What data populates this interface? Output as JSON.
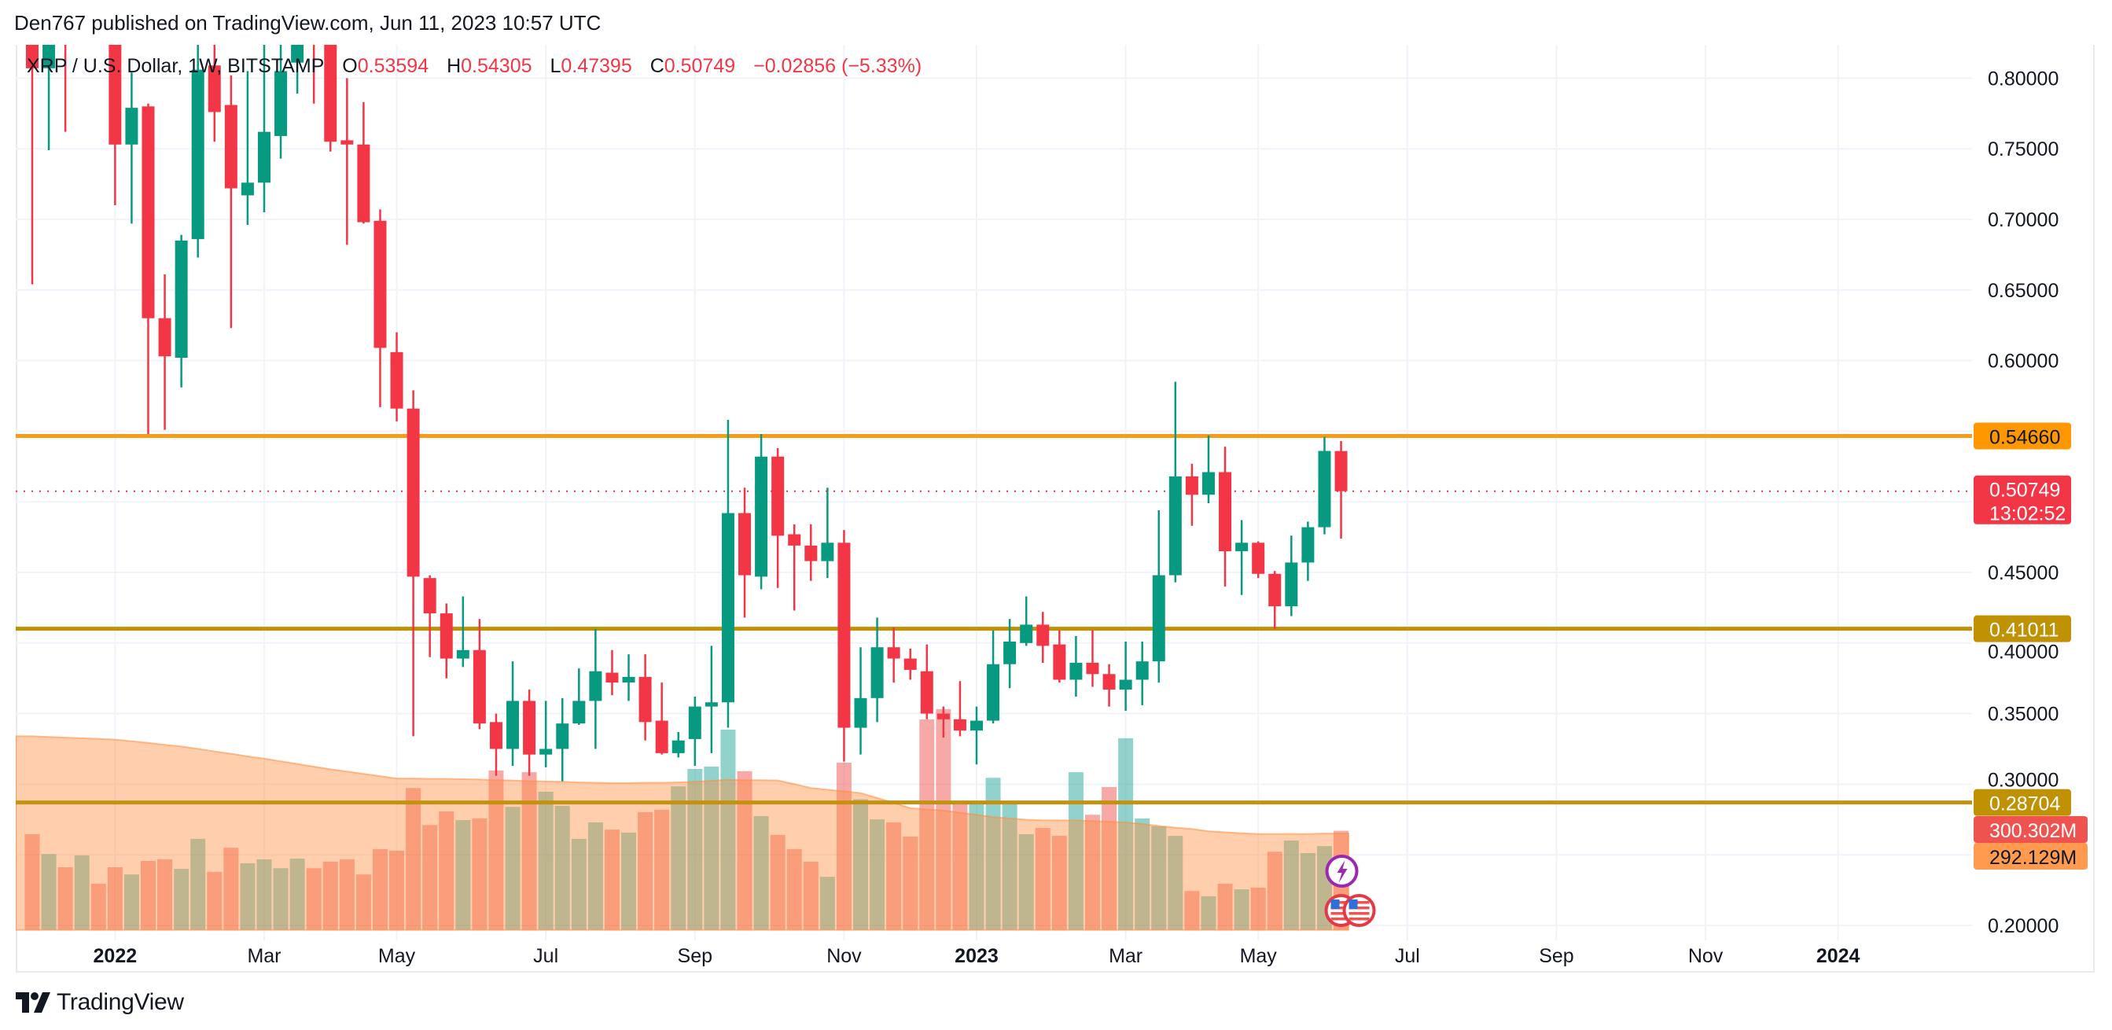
{
  "header": {
    "published": "Den767 published on TradingView.com, Jun 11, 2023 10:57 UTC",
    "symbol": "XRP / U.S. Dollar, 1W, BITSTAMP",
    "open_label": "O",
    "open": "0.53594",
    "high_label": "H",
    "high": "0.54305",
    "low_label": "L",
    "low": "0.47395",
    "close_label": "C",
    "close": "0.50749",
    "change": "−0.02856 (−5.33%)"
  },
  "brand": {
    "name": "TradingView"
  },
  "colors": {
    "up": "#089981",
    "down": "#f23645",
    "volume_up": "rgba(38,166,154,0.5)",
    "volume_down": "rgba(239,83,80,0.5)",
    "volume_ma_fill": "rgba(255,140,60,0.42)",
    "grid": "#f0f3fa"
  },
  "chart_data": {
    "type": "candlestick",
    "interval": "1W",
    "ylim": [
      0.189,
      0.824
    ],
    "price_ticks": [
      "0.80000",
      "0.75000",
      "0.70000",
      "0.65000",
      "0.60000",
      "0.45000",
      "0.40000",
      "0.35000",
      "0.30000",
      "0.20000"
    ],
    "time_ticks": [
      {
        "label": "2022",
        "date": "2022-01-03",
        "bold": true
      },
      {
        "label": "Mar",
        "date": "2022-03-07",
        "bold": false
      },
      {
        "label": "May",
        "date": "2022-05-02",
        "bold": false
      },
      {
        "label": "Jul",
        "date": "2022-07-04",
        "bold": false
      },
      {
        "label": "Sep",
        "date": "2022-09-05",
        "bold": false
      },
      {
        "label": "Nov",
        "date": "2022-11-07",
        "bold": false
      },
      {
        "label": "2023",
        "date": "2023-01-02",
        "bold": true
      },
      {
        "label": "Mar",
        "date": "2023-03-06",
        "bold": false
      },
      {
        "label": "May",
        "date": "2023-05-01",
        "bold": false
      },
      {
        "label": "Jul",
        "date": "2023-07-03",
        "bold": false
      },
      {
        "label": "Sep",
        "date": "2023-09-04",
        "bold": false
      },
      {
        "label": "Nov",
        "date": "2023-11-06",
        "bold": false
      },
      {
        "label": "2024",
        "date": "2024-01-01",
        "bold": true
      }
    ],
    "horizontal_lines": [
      {
        "price": 0.5466,
        "label": "0.54660",
        "color": "#f59c1a",
        "label_bg": "#ff9800",
        "label_color": "#131722"
      },
      {
        "price": 0.41011,
        "label": "0.41011",
        "color": "#bf9103",
        "label_bg": "#bf9103",
        "label_color": "#ffffff"
      },
      {
        "price": 0.28704,
        "label": "0.28704",
        "color": "#c39210",
        "label_bg": "#bf9103",
        "label_color": "#ffffff"
      }
    ],
    "last_price": {
      "price": 0.50749,
      "label": "0.50749",
      "countdown": "13:02:52",
      "color": "#f23645"
    },
    "volume_unit": "M",
    "volume_label": {
      "value": "300.302M",
      "bg": "#ef5350",
      "color": "#ffffff"
    },
    "volume_ma_label": {
      "value": "292.129M",
      "bg": "#ff9a4f",
      "color": "#131722"
    },
    "events": [
      {
        "type": "lightning-event",
        "date": "2023-06-05",
        "color": "#9c27b0"
      },
      {
        "type": "us-flag-event",
        "date": "2023-06-05",
        "color": "#e53945"
      },
      {
        "type": "us-flag-event",
        "date": "2023-06-12",
        "color": "#e53945"
      }
    ],
    "candles": [
      {
        "t": "2021-11-29",
        "o": 0.9,
        "h": 0.95,
        "l": 0.654,
        "c": 0.807,
        "v": 290
      },
      {
        "t": "2021-12-06",
        "o": 0.807,
        "h": 0.88,
        "l": 0.749,
        "c": 0.86,
        "v": 230
      },
      {
        "t": "2021-12-13",
        "o": 0.86,
        "h": 0.9,
        "l": 0.762,
        "c": 0.83,
        "v": 190
      },
      {
        "t": "2021-12-20",
        "o": 0.83,
        "h": 0.98,
        "l": 0.825,
        "c": 0.95,
        "v": 226
      },
      {
        "t": "2021-12-27",
        "o": 0.95,
        "h": 0.97,
        "l": 0.83,
        "c": 0.84,
        "v": 140
      },
      {
        "t": "2022-01-03",
        "o": 0.84,
        "h": 0.85,
        "l": 0.71,
        "c": 0.753,
        "v": 190
      },
      {
        "t": "2022-01-10",
        "o": 0.753,
        "h": 0.804,
        "l": 0.697,
        "c": 0.779,
        "v": 168
      },
      {
        "t": "2022-01-17",
        "o": 0.78,
        "h": 0.782,
        "l": 0.548,
        "c": 0.63,
        "v": 209
      },
      {
        "t": "2022-01-24",
        "o": 0.63,
        "h": 0.661,
        "l": 0.551,
        "c": 0.603,
        "v": 214
      },
      {
        "t": "2022-01-31",
        "o": 0.602,
        "h": 0.689,
        "l": 0.581,
        "c": 0.685,
        "v": 185
      },
      {
        "t": "2022-02-07",
        "o": 0.686,
        "h": 0.91,
        "l": 0.673,
        "c": 0.806,
        "v": 276
      },
      {
        "t": "2022-02-14",
        "o": 0.809,
        "h": 0.86,
        "l": 0.755,
        "c": 0.776,
        "v": 176
      },
      {
        "t": "2022-02-21",
        "o": 0.781,
        "h": 0.802,
        "l": 0.623,
        "c": 0.722,
        "v": 249
      },
      {
        "t": "2022-02-28",
        "o": 0.717,
        "h": 0.805,
        "l": 0.696,
        "c": 0.726,
        "v": 202
      },
      {
        "t": "2022-03-07",
        "o": 0.726,
        "h": 0.83,
        "l": 0.705,
        "c": 0.762,
        "v": 214
      },
      {
        "t": "2022-03-14",
        "o": 0.759,
        "h": 0.85,
        "l": 0.743,
        "c": 0.805,
        "v": 187
      },
      {
        "t": "2022-03-21",
        "o": 0.811,
        "h": 0.87,
        "l": 0.789,
        "c": 0.85,
        "v": 216
      },
      {
        "t": "2022-03-28",
        "o": 0.86,
        "h": 0.91,
        "l": 0.782,
        "c": 0.83,
        "v": 187
      },
      {
        "t": "2022-04-04",
        "o": 0.83,
        "h": 0.84,
        "l": 0.748,
        "c": 0.755,
        "v": 207
      },
      {
        "t": "2022-04-11",
        "o": 0.756,
        "h": 0.8,
        "l": 0.682,
        "c": 0.753,
        "v": 214
      },
      {
        "t": "2022-04-18",
        "o": 0.753,
        "h": 0.783,
        "l": 0.697,
        "c": 0.698,
        "v": 168
      },
      {
        "t": "2022-04-25",
        "o": 0.699,
        "h": 0.707,
        "l": 0.567,
        "c": 0.609,
        "v": 245
      },
      {
        "t": "2022-05-02",
        "o": 0.606,
        "h": 0.62,
        "l": 0.557,
        "c": 0.566,
        "v": 240
      },
      {
        "t": "2022-05-09",
        "o": 0.566,
        "h": 0.579,
        "l": 0.334,
        "c": 0.447,
        "v": 430
      },
      {
        "t": "2022-05-16",
        "o": 0.446,
        "h": 0.448,
        "l": 0.39,
        "c": 0.421,
        "v": 318
      },
      {
        "t": "2022-05-23",
        "o": 0.421,
        "h": 0.428,
        "l": 0.375,
        "c": 0.389,
        "v": 359
      },
      {
        "t": "2022-05-30",
        "o": 0.389,
        "h": 0.433,
        "l": 0.383,
        "c": 0.395,
        "v": 333
      },
      {
        "t": "2022-06-06",
        "o": 0.395,
        "h": 0.417,
        "l": 0.339,
        "c": 0.343,
        "v": 338
      },
      {
        "t": "2022-06-13",
        "o": 0.344,
        "h": 0.35,
        "l": 0.306,
        "c": 0.325,
        "v": 483
      },
      {
        "t": "2022-06-20",
        "o": 0.325,
        "h": 0.387,
        "l": 0.313,
        "c": 0.359,
        "v": 373
      },
      {
        "t": "2022-06-27",
        "o": 0.359,
        "h": 0.367,
        "l": 0.306,
        "c": 0.321,
        "v": 478
      },
      {
        "t": "2022-07-04",
        "o": 0.321,
        "h": 0.359,
        "l": 0.312,
        "c": 0.325,
        "v": 419
      },
      {
        "t": "2022-07-11",
        "o": 0.325,
        "h": 0.361,
        "l": 0.302,
        "c": 0.343,
        "v": 376
      },
      {
        "t": "2022-07-18",
        "o": 0.343,
        "h": 0.382,
        "l": 0.342,
        "c": 0.359,
        "v": 276
      },
      {
        "t": "2022-07-25",
        "o": 0.359,
        "h": 0.41,
        "l": 0.325,
        "c": 0.38,
        "v": 326
      },
      {
        "t": "2022-08-01",
        "o": 0.379,
        "h": 0.395,
        "l": 0.363,
        "c": 0.372,
        "v": 304
      },
      {
        "t": "2022-08-08",
        "o": 0.372,
        "h": 0.392,
        "l": 0.359,
        "c": 0.376,
        "v": 295
      },
      {
        "t": "2022-08-15",
        "o": 0.376,
        "h": 0.392,
        "l": 0.331,
        "c": 0.344,
        "v": 357
      },
      {
        "t": "2022-08-22",
        "o": 0.345,
        "h": 0.372,
        "l": 0.321,
        "c": 0.322,
        "v": 364
      },
      {
        "t": "2022-08-29",
        "o": 0.322,
        "h": 0.337,
        "l": 0.319,
        "c": 0.331,
        "v": 435
      },
      {
        "t": "2022-09-05",
        "o": 0.332,
        "h": 0.362,
        "l": 0.313,
        "c": 0.355,
        "v": 488
      },
      {
        "t": "2022-09-12",
        "o": 0.355,
        "h": 0.398,
        "l": 0.322,
        "c": 0.358,
        "v": 495
      },
      {
        "t": "2022-09-19",
        "o": 0.358,
        "h": 0.558,
        "l": 0.34,
        "c": 0.492,
        "v": 607
      },
      {
        "t": "2022-09-26",
        "o": 0.492,
        "h": 0.51,
        "l": 0.418,
        "c": 0.448,
        "v": 481
      },
      {
        "t": "2022-10-03",
        "o": 0.447,
        "h": 0.548,
        "l": 0.438,
        "c": 0.532,
        "v": 345
      },
      {
        "t": "2022-10-10",
        "o": 0.532,
        "h": 0.538,
        "l": 0.439,
        "c": 0.476,
        "v": 288
      },
      {
        "t": "2022-10-17",
        "o": 0.477,
        "h": 0.484,
        "l": 0.423,
        "c": 0.469,
        "v": 245
      },
      {
        "t": "2022-10-24",
        "o": 0.469,
        "h": 0.484,
        "l": 0.444,
        "c": 0.458,
        "v": 207
      },
      {
        "t": "2022-10-31",
        "o": 0.458,
        "h": 0.51,
        "l": 0.446,
        "c": 0.471,
        "v": 161
      },
      {
        "t": "2022-11-07",
        "o": 0.471,
        "h": 0.48,
        "l": 0.316,
        "c": 0.34,
        "v": 507
      },
      {
        "t": "2022-11-14",
        "o": 0.34,
        "h": 0.397,
        "l": 0.321,
        "c": 0.361,
        "v": 396
      },
      {
        "t": "2022-11-21",
        "o": 0.361,
        "h": 0.418,
        "l": 0.344,
        "c": 0.397,
        "v": 335
      },
      {
        "t": "2022-11-28",
        "o": 0.397,
        "h": 0.411,
        "l": 0.372,
        "c": 0.389,
        "v": 326
      },
      {
        "t": "2022-12-05",
        "o": 0.389,
        "h": 0.396,
        "l": 0.374,
        "c": 0.381,
        "v": 283
      },
      {
        "t": "2022-12-12",
        "o": 0.38,
        "h": 0.399,
        "l": 0.346,
        "c": 0.35,
        "v": 638
      },
      {
        "t": "2022-12-19",
        "o": 0.35,
        "h": 0.355,
        "l": 0.333,
        "c": 0.346,
        "v": 669
      },
      {
        "t": "2022-12-26",
        "o": 0.346,
        "h": 0.373,
        "l": 0.334,
        "c": 0.338,
        "v": 385
      },
      {
        "t": "2023-01-02",
        "o": 0.338,
        "h": 0.355,
        "l": 0.314,
        "c": 0.345,
        "v": 389
      },
      {
        "t": "2023-01-09",
        "o": 0.345,
        "h": 0.409,
        "l": 0.343,
        "c": 0.385,
        "v": 461
      },
      {
        "t": "2023-01-16",
        "o": 0.385,
        "h": 0.417,
        "l": 0.368,
        "c": 0.401,
        "v": 388
      },
      {
        "t": "2023-01-23",
        "o": 0.4,
        "h": 0.433,
        "l": 0.398,
        "c": 0.413,
        "v": 290
      },
      {
        "t": "2023-01-30",
        "o": 0.413,
        "h": 0.422,
        "l": 0.386,
        "c": 0.398,
        "v": 309
      },
      {
        "t": "2023-02-06",
        "o": 0.399,
        "h": 0.409,
        "l": 0.372,
        "c": 0.374,
        "v": 285
      },
      {
        "t": "2023-02-13",
        "o": 0.374,
        "h": 0.405,
        "l": 0.362,
        "c": 0.386,
        "v": 478
      },
      {
        "t": "2023-02-20",
        "o": 0.386,
        "h": 0.409,
        "l": 0.369,
        "c": 0.378,
        "v": 349
      },
      {
        "t": "2023-02-27",
        "o": 0.378,
        "h": 0.385,
        "l": 0.355,
        "c": 0.367,
        "v": 433
      },
      {
        "t": "2023-03-06",
        "o": 0.367,
        "h": 0.401,
        "l": 0.352,
        "c": 0.374,
        "v": 581
      },
      {
        "t": "2023-03-13",
        "o": 0.374,
        "h": 0.401,
        "l": 0.356,
        "c": 0.387,
        "v": 338
      },
      {
        "t": "2023-03-20",
        "o": 0.387,
        "h": 0.494,
        "l": 0.372,
        "c": 0.448,
        "v": 314
      },
      {
        "t": "2023-03-27",
        "o": 0.448,
        "h": 0.585,
        "l": 0.443,
        "c": 0.518,
        "v": 285
      },
      {
        "t": "2023-04-03",
        "o": 0.518,
        "h": 0.527,
        "l": 0.483,
        "c": 0.505,
        "v": 118
      },
      {
        "t": "2023-04-10",
        "o": 0.505,
        "h": 0.547,
        "l": 0.499,
        "c": 0.521,
        "v": 102
      },
      {
        "t": "2023-04-17",
        "o": 0.521,
        "h": 0.539,
        "l": 0.44,
        "c": 0.465,
        "v": 140
      },
      {
        "t": "2023-04-24",
        "o": 0.465,
        "h": 0.487,
        "l": 0.434,
        "c": 0.471,
        "v": 123
      },
      {
        "t": "2023-05-01",
        "o": 0.471,
        "h": 0.472,
        "l": 0.446,
        "c": 0.449,
        "v": 128
      },
      {
        "t": "2023-05-08",
        "o": 0.449,
        "h": 0.451,
        "l": 0.41,
        "c": 0.426,
        "v": 237
      },
      {
        "t": "2023-05-15",
        "o": 0.426,
        "h": 0.476,
        "l": 0.419,
        "c": 0.457,
        "v": 271
      },
      {
        "t": "2023-05-22",
        "o": 0.457,
        "h": 0.486,
        "l": 0.444,
        "c": 0.482,
        "v": 233
      },
      {
        "t": "2023-05-29",
        "o": 0.482,
        "h": 0.546,
        "l": 0.477,
        "c": 0.536,
        "v": 254
      },
      {
        "t": "2023-06-05",
        "o": 0.53594,
        "h": 0.54305,
        "l": 0.47395,
        "c": 0.50749,
        "v": 300.302
      }
    ],
    "volume_ma": [
      587,
      585,
      583,
      581,
      579,
      577,
      572,
      567,
      561,
      556,
      549,
      541,
      534,
      526,
      519,
      511,
      503,
      495,
      487,
      480,
      473,
      466,
      459,
      459,
      458,
      458,
      457,
      456,
      454,
      453,
      451,
      450,
      449,
      447,
      446,
      445,
      445,
      446,
      446,
      447,
      449,
      452,
      455,
      454,
      454,
      453,
      442,
      430,
      425,
      420,
      415,
      400,
      385,
      369,
      365,
      362,
      355,
      349,
      342,
      338,
      334,
      332,
      332,
      332,
      330,
      328,
      326,
      321,
      315,
      310,
      306,
      299,
      296,
      293,
      291,
      291,
      291,
      291,
      292,
      292.129
    ]
  }
}
